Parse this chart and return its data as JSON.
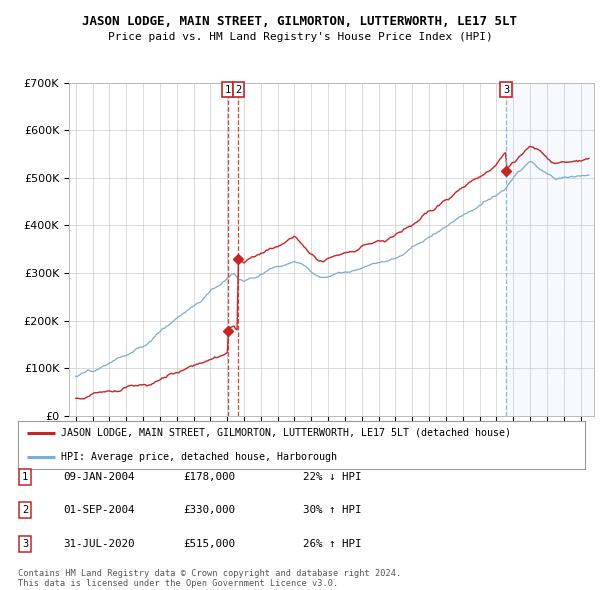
{
  "title": "JASON LODGE, MAIN STREET, GILMORTON, LUTTERWORTH, LE17 5LT",
  "subtitle": "Price paid vs. HM Land Registry's House Price Index (HPI)",
  "ylim": [
    0,
    700000
  ],
  "yticks": [
    0,
    100000,
    200000,
    300000,
    400000,
    500000,
    600000,
    700000
  ],
  "ytick_labels": [
    "£0",
    "£100K",
    "£200K",
    "£300K",
    "£400K",
    "£500K",
    "£600K",
    "£700K"
  ],
  "purchase_times": [
    2004.027,
    2004.664,
    2020.578
  ],
  "purchase_prices": [
    178000,
    330000,
    515000
  ],
  "purchase_labels": [
    "1",
    "2",
    "3"
  ],
  "red_line_color": "#cc2222",
  "blue_line_color": "#7aadd4",
  "vline1_color": "#cc2222",
  "vline2_color": "#7aadd4",
  "shade_color": "#ddeeff",
  "legend_label_red": "JASON LODGE, MAIN STREET, GILMORTON, LUTTERWORTH, LE17 5LT (detached house)",
  "legend_label_blue": "HPI: Average price, detached house, Harborough",
  "table_data": [
    [
      "1",
      "09-JAN-2004",
      "£178,000",
      "22% ↓ HPI"
    ],
    [
      "2",
      "01-SEP-2004",
      "£330,000",
      "30% ↑ HPI"
    ],
    [
      "3",
      "31-JUL-2020",
      "£515,000",
      "26% ↑ HPI"
    ]
  ],
  "footer_text": "Contains HM Land Registry data © Crown copyright and database right 2024.\nThis data is licensed under the Open Government Licence v3.0.",
  "background_color": "#ffffff",
  "plot_bg_color": "#ffffff",
  "grid_color": "#cccccc"
}
